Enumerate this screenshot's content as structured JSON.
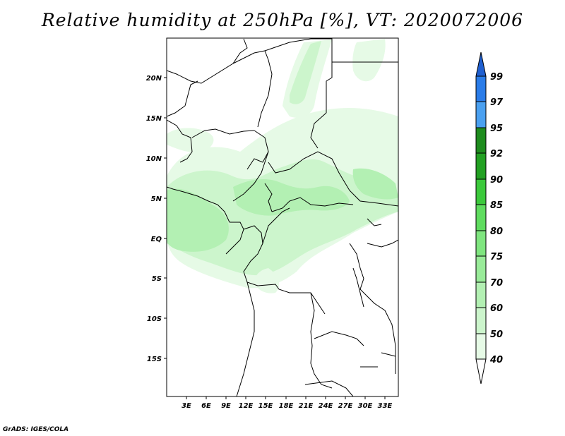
{
  "title": "Relative humidity at 250hPa [%], VT: 2020072006",
  "credit": "GrADS: IGES/COLA",
  "lat_ticks": [
    "20N",
    "15N",
    "10N",
    "5N",
    "EQ",
    "5S",
    "10S",
    "15S"
  ],
  "lon_ticks": [
    "3E",
    "6E",
    "9E",
    "12E",
    "15E",
    "18E",
    "21E",
    "24E",
    "27E",
    "30E",
    "33E"
  ],
  "colorbar": {
    "labels": [
      "40",
      "50",
      "60",
      "70",
      "75",
      "80",
      "85",
      "90",
      "92",
      "95",
      "97",
      "99"
    ],
    "colors": [
      "#ffffff",
      "#e6fae6",
      "#ccf5cc",
      "#b3f0b3",
      "#99eb99",
      "#7fe57f",
      "#5fdc5f",
      "#3cc93c",
      "#22b422",
      "#14a014",
      "#1e8c1e",
      "#4aa0f0",
      "#2a7ce8",
      "#1f5fd0",
      "#1a49c0"
    ]
  },
  "chart_data": {
    "type": "heatmap",
    "variable": "Relative humidity at 250hPa [%]",
    "valid_time": "2020072006",
    "lon_range": [
      0,
      35
    ],
    "lat_range": [
      -20,
      25
    ],
    "levels": [
      40,
      50,
      60,
      70,
      75,
      80,
      85,
      90,
      92,
      95,
      97,
      99
    ]
  }
}
